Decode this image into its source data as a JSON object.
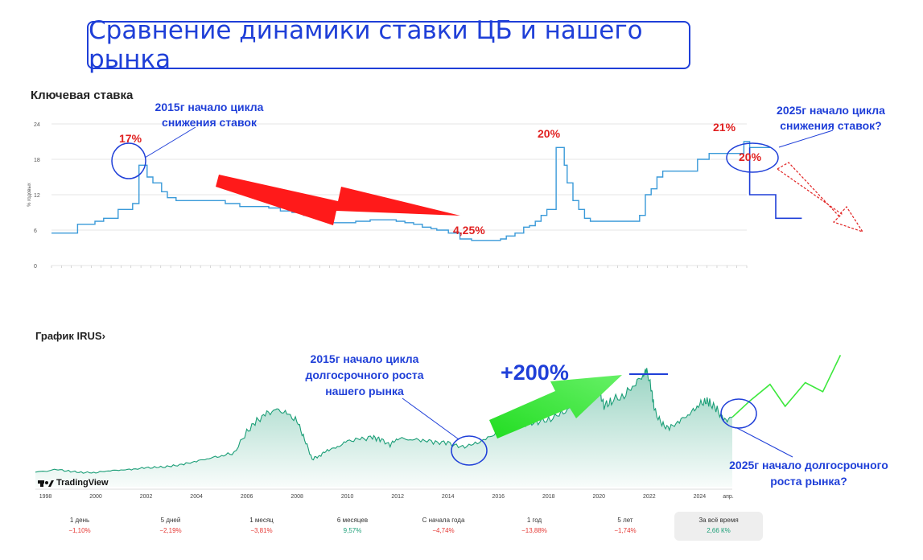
{
  "page_title": "Сравнение динамики ставки ЦБ и нашего рынка",
  "top_chart": {
    "title": "Ключевая ставка",
    "ylabel": "% годовых",
    "y_ticks": [
      "0",
      "6",
      "12",
      "18",
      "24"
    ]
  },
  "bottom_chart": {
    "title": "График IRUS›",
    "logo": "TradingView",
    "x_ticks": [
      "1998",
      "2000",
      "2002",
      "2004",
      "2006",
      "2008",
      "2010",
      "2012",
      "2014",
      "2016",
      "2018",
      "2020",
      "2022",
      "2024",
      "апр."
    ]
  },
  "annotations": {
    "cycle_2015_rate": "2015г начало цикла снижения ставок",
    "cycle_2025_rate": "2025г начало цикла снижения ставок?",
    "cycle_2015_market": "2015г начало цикла долгосрочного роста нашего рынка",
    "cycle_2025_market": "2025г начало долгосрочного роста рынка?",
    "pct_17": "17%",
    "pct_20a": "20%",
    "pct_21": "21%",
    "pct_20b": "20%",
    "pct_425": "4,25%",
    "plus_200": "+200%"
  },
  "periods": [
    {
      "label": "1 день",
      "change": "−1,10%",
      "color": "#e53935",
      "active": false
    },
    {
      "label": "5 дней",
      "change": "−2,19%",
      "color": "#e53935",
      "active": false
    },
    {
      "label": "1 месяц",
      "change": "−3,81%",
      "color": "#e53935",
      "active": false
    },
    {
      "label": "6 месяцев",
      "change": "9,57%",
      "color": "#1b9e77",
      "active": false
    },
    {
      "label": "С начала года",
      "change": "−4,74%",
      "color": "#e53935",
      "active": false
    },
    {
      "label": "1 год",
      "change": "−13,88%",
      "color": "#e53935",
      "active": false
    },
    {
      "label": "5 лет",
      "change": "−1,74%",
      "color": "#e53935",
      "active": false
    },
    {
      "label": "За всё время",
      "change": "2,66 К%",
      "color": "#1b9e77",
      "active": true
    }
  ],
  "colors": {
    "accent_blue": "#1f3fd8",
    "rate_line": "#3a9ad9",
    "market_line": "#1b9e77",
    "red": "#e02020",
    "green": "#39e639"
  },
  "chart_data": [
    {
      "type": "line",
      "title": "Ключевая ставка",
      "ylabel": "% годовых",
      "ylim": [
        0,
        24
      ],
      "x_start": 2013.45,
      "x_end": 2025.45,
      "x": [
        2013.45,
        2013.9,
        2014.2,
        2014.35,
        2014.6,
        2014.85,
        2014.96,
        2015.1,
        2015.2,
        2015.35,
        2015.45,
        2015.6,
        2015.75,
        2016.0,
        2016.45,
        2016.7,
        2016.95,
        2017.2,
        2017.4,
        2017.6,
        2017.8,
        2017.95,
        2018.1,
        2018.25,
        2018.7,
        2018.95,
        2019.4,
        2019.55,
        2019.7,
        2019.85,
        2020.0,
        2020.1,
        2020.3,
        2020.5,
        2020.7,
        2021.2,
        2021.3,
        2021.45,
        2021.6,
        2021.7,
        2021.8,
        2021.9,
        2022.0,
        2022.16,
        2022.3,
        2022.35,
        2022.45,
        2022.55,
        2022.65,
        2022.75,
        2023.55,
        2023.6,
        2023.7,
        2023.8,
        2023.9,
        2024.0,
        2024.5,
        2024.6,
        2024.8,
        2025.4,
        2025.5,
        2025.85
      ],
      "y": [
        5.5,
        7.0,
        7.5,
        8.0,
        9.5,
        10.5,
        17.0,
        15.0,
        14.0,
        12.5,
        11.5,
        11.0,
        11.0,
        11.0,
        10.5,
        10.0,
        10.0,
        9.75,
        9.25,
        9.0,
        8.5,
        8.25,
        7.75,
        7.25,
        7.5,
        7.75,
        7.5,
        7.25,
        7.0,
        6.5,
        6.25,
        6.0,
        5.5,
        4.5,
        4.25,
        4.5,
        5.0,
        5.5,
        6.5,
        6.75,
        7.5,
        8.5,
        9.5,
        20.0,
        17.0,
        14.0,
        11.0,
        9.5,
        8.0,
        7.5,
        7.5,
        8.5,
        12.0,
        13.0,
        15.0,
        16.0,
        16.0,
        18.0,
        19.0,
        21.0,
        20.0,
        20.0
      ],
      "forecast_x": [
        2025.5,
        2025.5,
        2025.95,
        2025.95,
        2026.4
      ],
      "forecast_y": [
        20.0,
        12.0,
        12.0,
        8.0,
        8.0
      ]
    },
    {
      "type": "area",
      "title": "График IRUS›",
      "x_range": [
        1997.6,
        2025.3
      ],
      "x": [
        1997.6,
        1998.5,
        1999.0,
        1999.5,
        2000.0,
        2000.5,
        2001.0,
        2001.5,
        2002.0,
        2002.5,
        2003.0,
        2003.5,
        2004.0,
        2004.5,
        2005.0,
        2005.5,
        2006.0,
        2006.4,
        2006.8,
        2007.2,
        2007.6,
        2008.0,
        2008.3,
        2008.6,
        2008.9,
        2009.2,
        2009.6,
        2010.0,
        2010.5,
        2011.0,
        2011.3,
        2011.7,
        2012.0,
        2012.5,
        2013.0,
        2013.5,
        2014.0,
        2014.5,
        2015.0,
        2015.5,
        2016.0,
        2016.5,
        2017.0,
        2017.5,
        2018.0,
        2018.5,
        2019.0,
        2019.5,
        2020.0,
        2020.2,
        2020.5,
        2021.0,
        2021.4,
        2021.75,
        2021.9,
        2022.1,
        2022.2,
        2022.5,
        2022.8,
        2023.2,
        2023.6,
        2023.9,
        2024.2,
        2024.4,
        2024.7,
        2025.0,
        2025.3
      ],
      "y": [
        400,
        470,
        420,
        390,
        390,
        440,
        460,
        480,
        520,
        530,
        560,
        620,
        700,
        780,
        850,
        930,
        1500,
        1800,
        2000,
        2100,
        2000,
        1800,
        1300,
        760,
        850,
        1000,
        1080,
        1250,
        1300,
        1350,
        1300,
        1150,
        1330,
        1300,
        1280,
        1220,
        1200,
        1080,
        1150,
        1300,
        1500,
        1600,
        1720,
        1780,
        1830,
        2000,
        2200,
        2450,
        2700,
        2200,
        2350,
        2500,
        2800,
        3050,
        3200,
        2600,
        2100,
        1700,
        1600,
        1800,
        2000,
        2200,
        2350,
        2300,
        2100,
        1800,
        1900
      ],
      "forecast_x": [
        2025.3,
        2026.0,
        2026.8,
        2027.4,
        2028.2,
        2028.9,
        2029.6
      ],
      "forecast_y": [
        1900,
        2350,
        2800,
        2200,
        2850,
        2600,
        3600
      ]
    }
  ]
}
